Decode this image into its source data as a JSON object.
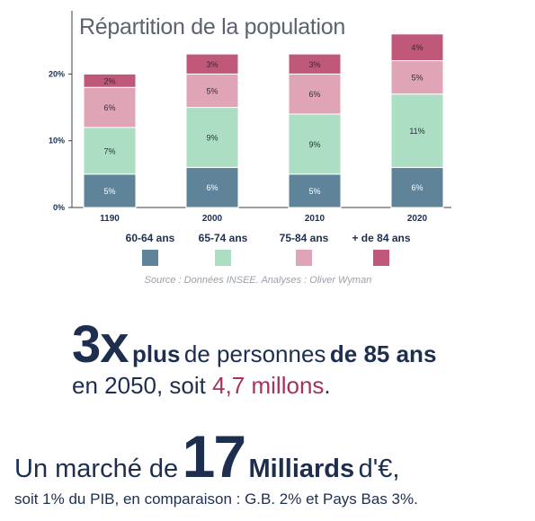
{
  "chart_data": {
    "type": "bar",
    "stacked": true,
    "title": "Répartition de la population",
    "categories": [
      "1190",
      "2000",
      "2010",
      "2020"
    ],
    "series": [
      {
        "name": "60-64 ans",
        "color": "#5f8499",
        "values": [
          5,
          6,
          5,
          6
        ],
        "labels": [
          "5%",
          "6%",
          "5%",
          "6%"
        ]
      },
      {
        "name": "65-74 ans",
        "color": "#acdec4",
        "values": [
          7,
          9,
          9,
          11
        ],
        "labels": [
          "7%",
          "9%",
          "9%",
          "11%"
        ]
      },
      {
        "name": "75-84 ans",
        "color": "#dfa5b6",
        "values": [
          6,
          5,
          6,
          5
        ],
        "labels": [
          "6%",
          "5%",
          "6%",
          "5%"
        ]
      },
      {
        "name": "+ de 84 ans",
        "color": "#c0587a",
        "values": [
          2,
          3,
          3,
          4
        ],
        "labels": [
          "2%",
          "3%",
          "3%",
          "4%"
        ]
      }
    ],
    "y_ticks": [
      {
        "value": 0,
        "label": "0%"
      },
      {
        "value": 10,
        "label": "10%"
      },
      {
        "value": 20,
        "label": "20%"
      }
    ],
    "ylim": [
      0,
      27
    ],
    "legend_position": "bottom",
    "grid": false
  },
  "source": "Source : Données INSEE. Analyses : Oliver Wyman",
  "headline": {
    "big": "3x",
    "bold1": "plus",
    "norm1": "de personnes",
    "bold2": "de 85 ans",
    "line2_pre": "en 2050, soit",
    "line2_accent": "4,7 millons",
    "line2_post": "."
  },
  "market": {
    "pre": "Un marché de",
    "big": "17",
    "bold": "Milliards",
    "post": "d'€,"
  },
  "pib": "soit 1% du PIB, en comparaison : G.B. 2% et Pays Bas 3%.",
  "colors": {
    "navy": "#1d2e4f",
    "accent": "#a8325c"
  }
}
